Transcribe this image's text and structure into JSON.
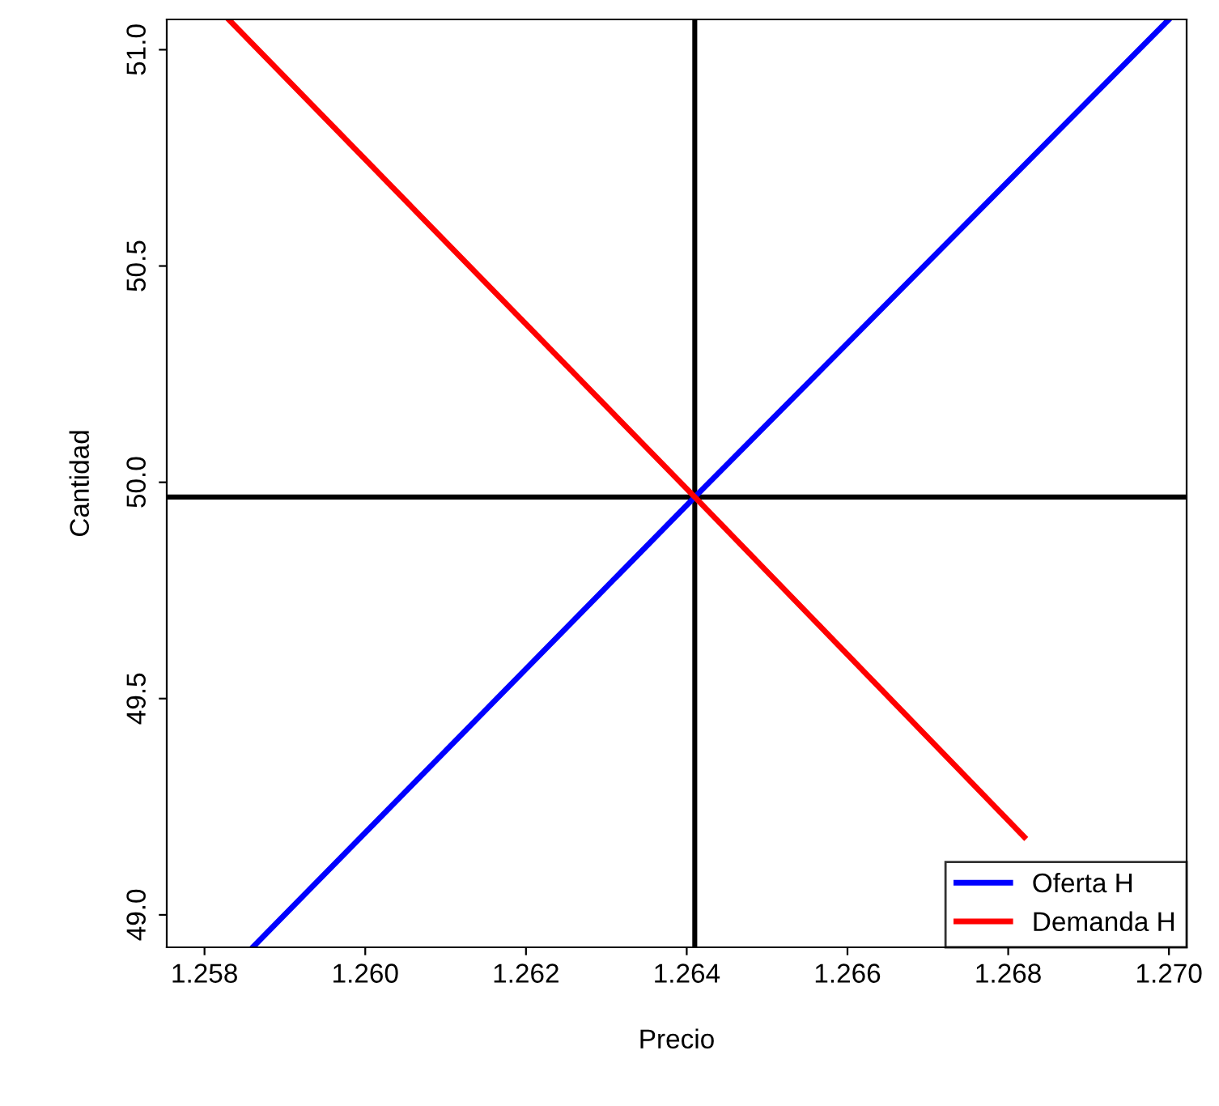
{
  "chart_data": {
    "type": "line",
    "xlabel": "Precio",
    "ylabel": "Cantidad",
    "xlim": [
      1.25753,
      1.27022
    ],
    "ylim": [
      48.925,
      51.07
    ],
    "xticks": [
      {
        "value": 1.258,
        "label": "1.258"
      },
      {
        "value": 1.26,
        "label": "1.260"
      },
      {
        "value": 1.262,
        "label": "1.262"
      },
      {
        "value": 1.264,
        "label": "1.264"
      },
      {
        "value": 1.266,
        "label": "1.266"
      },
      {
        "value": 1.268,
        "label": "1.268"
      },
      {
        "value": 1.27,
        "label": "1.270"
      }
    ],
    "yticks": [
      {
        "value": 49.0,
        "label": "49.0"
      },
      {
        "value": 49.5,
        "label": "49.5"
      },
      {
        "value": 50.0,
        "label": "50.0"
      },
      {
        "value": 50.5,
        "label": "50.5"
      },
      {
        "value": 51.0,
        "label": "51.0"
      }
    ],
    "series": [
      {
        "name": "Oferta H",
        "color": "#0000ff",
        "x": [
          1.2586,
          1.2641,
          1.27
        ],
        "values": [
          48.925,
          49.966,
          51.07
        ]
      },
      {
        "name": "Demanda H",
        "color": "#ff0000",
        "x": [
          1.2583,
          1.2641,
          1.2682
        ],
        "values": [
          51.07,
          49.966,
          49.18
        ]
      }
    ],
    "ref_lines": [
      {
        "axis": "x",
        "value": 1.2641,
        "color": "#000000"
      },
      {
        "axis": "y",
        "value": 49.966,
        "color": "#000000"
      }
    ],
    "legend": "bottom right",
    "grid": false,
    "marker": "none",
    "line_style": "solid"
  }
}
